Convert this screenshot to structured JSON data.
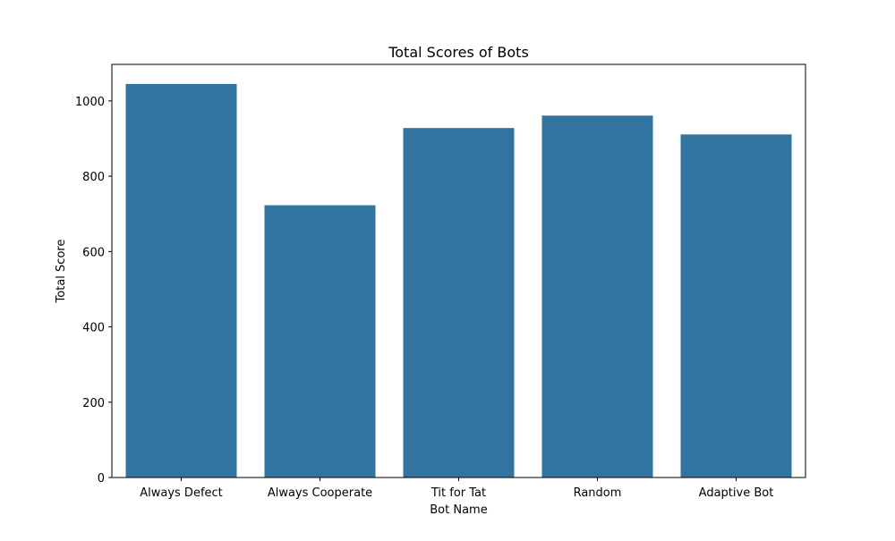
{
  "chart_data": {
    "type": "bar",
    "title": "Total Scores of Bots",
    "xlabel": "Bot Name",
    "ylabel": "Total Score",
    "categories": [
      "Always Defect",
      "Always Cooperate",
      "Tit for Tat",
      "Random",
      "Adaptive Bot"
    ],
    "values": [
      1045,
      723,
      928,
      961,
      911
    ],
    "ylim": [
      0,
      1097
    ],
    "yticks": [
      0,
      200,
      400,
      600,
      800,
      1000
    ],
    "grid": false,
    "bar_color": "#3274a1"
  }
}
